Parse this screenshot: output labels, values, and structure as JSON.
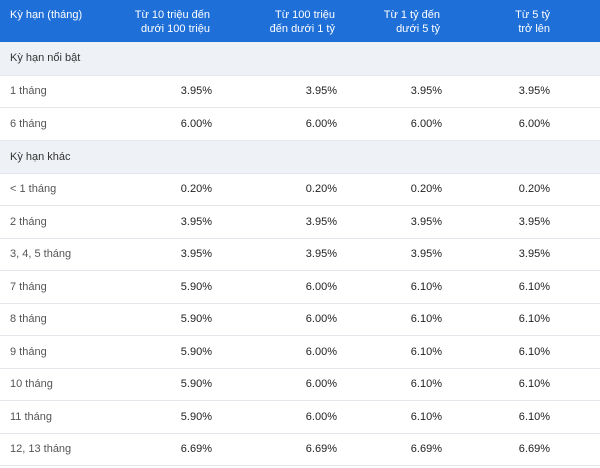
{
  "header": {
    "term": "Kỳ hạn (tháng)",
    "tier1": "Từ 10 triệu đến\ndưới 100 triệu",
    "tier2": "Từ 100 triệu\nđến dưới 1 tỷ",
    "tier3": "Từ 1 tỷ đến\ndưới 5 tỷ",
    "tier4": "Từ 5 tỷ\ntrở lên"
  },
  "sections": [
    {
      "title": "Kỳ hạn nổi bật",
      "rows": [
        {
          "term": "1 tháng",
          "rates": [
            "3.95%",
            "3.95%",
            "3.95%",
            "3.95%"
          ]
        },
        {
          "term": "6 tháng",
          "rates": [
            "6.00%",
            "6.00%",
            "6.00%",
            "6.00%"
          ]
        }
      ]
    },
    {
      "title": "Kỳ hạn khác",
      "rows": [
        {
          "term": "< 1 tháng",
          "rates": [
            "0.20%",
            "0.20%",
            "0.20%",
            "0.20%"
          ]
        },
        {
          "term": "2 tháng",
          "rates": [
            "3.95%",
            "3.95%",
            "3.95%",
            "3.95%"
          ]
        },
        {
          "term": "3, 4, 5 tháng",
          "rates": [
            "3.95%",
            "3.95%",
            "3.95%",
            "3.95%"
          ]
        },
        {
          "term": "7 tháng",
          "rates": [
            "5.90%",
            "6.00%",
            "6.10%",
            "6.10%"
          ]
        },
        {
          "term": "8 tháng",
          "rates": [
            "5.90%",
            "6.00%",
            "6.10%",
            "6.10%"
          ]
        },
        {
          "term": "9 tháng",
          "rates": [
            "5.90%",
            "6.00%",
            "6.10%",
            "6.10%"
          ]
        },
        {
          "term": "10 tháng",
          "rates": [
            "5.90%",
            "6.00%",
            "6.10%",
            "6.10%"
          ]
        },
        {
          "term": "11 tháng",
          "rates": [
            "5.90%",
            "6.00%",
            "6.10%",
            "6.10%"
          ]
        },
        {
          "term": "12, 13 tháng",
          "rates": [
            "6.69%",
            "6.69%",
            "6.69%",
            "6.69%"
          ]
        }
      ]
    }
  ],
  "colors": {
    "header_bg": "#1f6fd8",
    "section_bg": "#eef1f5",
    "divider": "#e3e6ea"
  }
}
